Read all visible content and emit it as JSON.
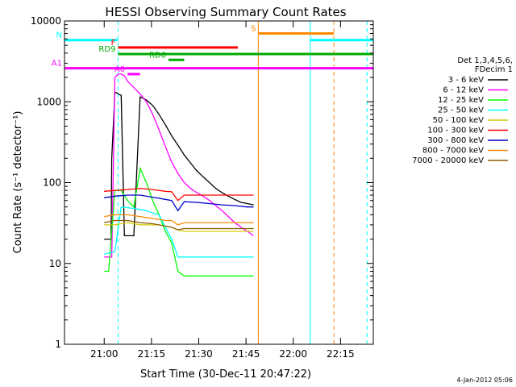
{
  "chart_data": {
    "type": "line",
    "title": "HESSI Observing Summary Count Rates",
    "xlabel": "Start Time (30-Dec-11 20:47:22)",
    "ylabel": "Count Rate (s⁻¹ detector⁻¹)",
    "y_scale": "log",
    "ylim": [
      1,
      10000
    ],
    "x_unit": "minutes after 30-Dec-11 20:47:22",
    "xlim": [
      0,
      98
    ],
    "x_ticks": [
      {
        "value": 12.6,
        "label": "21:00"
      },
      {
        "value": 27.6,
        "label": "21:15"
      },
      {
        "value": 42.6,
        "label": "21:30"
      },
      {
        "value": 57.6,
        "label": "21:45"
      },
      {
        "value": 72.6,
        "label": "22:00"
      },
      {
        "value": 87.6,
        "label": "22:15"
      }
    ],
    "y_ticks": [
      {
        "value": 1,
        "label": "1"
      },
      {
        "value": 10,
        "label": "10"
      },
      {
        "value": 100,
        "label": "100"
      },
      {
        "value": 1000,
        "label": "1000"
      },
      {
        "value": 10000,
        "label": "10000"
      }
    ],
    "legend": {
      "placement": "right",
      "header": [
        "Det 1,3,4,5,6,",
        "FDecim 1"
      ]
    },
    "series": [
      {
        "name": "3 - 6 keV",
        "color": "#000000",
        "x": [
          12.6,
          14,
          14.8,
          15,
          16,
          16.5,
          17,
          18,
          19,
          20,
          21,
          22,
          24,
          26,
          28,
          30,
          32,
          34,
          36,
          38,
          40,
          42,
          44,
          46,
          48,
          50,
          52,
          54,
          56,
          58,
          60
        ],
        "y": [
          20,
          20,
          20,
          200,
          1300,
          1300,
          1250,
          1200,
          22,
          22,
          22,
          22,
          1150,
          1050,
          900,
          700,
          520,
          380,
          290,
          220,
          175,
          140,
          118,
          100,
          85,
          75,
          68,
          62,
          57,
          55,
          53
        ]
      },
      {
        "name": "6 - 12 keV",
        "color": "#ff00ff",
        "x": [
          12.6,
          15,
          16,
          17,
          18,
          19,
          20,
          22,
          24,
          26,
          28,
          30,
          32,
          34,
          36,
          38,
          40,
          42,
          44,
          46,
          48,
          50,
          52,
          54,
          56,
          58,
          60
        ],
        "y": [
          12,
          12,
          2000,
          2200,
          2200,
          2100,
          1800,
          1500,
          1250,
          1000,
          700,
          450,
          280,
          180,
          130,
          100,
          85,
          75,
          68,
          60,
          52,
          45,
          38,
          32,
          28,
          25,
          22
        ]
      },
      {
        "name": "12 - 25 keV",
        "color": "#00ff00",
        "x": [
          12.6,
          14,
          16,
          18,
          20,
          22,
          24,
          26,
          28,
          30,
          32,
          34,
          36,
          38,
          40,
          42,
          44,
          46,
          48,
          50,
          52,
          54,
          56,
          58,
          60
        ],
        "y": [
          8,
          8,
          80,
          80,
          60,
          50,
          150,
          100,
          60,
          40,
          25,
          18,
          8,
          7,
          7,
          7,
          7,
          7,
          7,
          7,
          7,
          7,
          7,
          7,
          7
        ]
      },
      {
        "name": "25 - 50 keV",
        "color": "#00ffff",
        "x": [
          12.6,
          16,
          18,
          22,
          26,
          28,
          30,
          34,
          36,
          38,
          40,
          42,
          44,
          46,
          48,
          52,
          56,
          60
        ],
        "y": [
          13,
          14,
          50,
          48,
          45,
          42,
          40,
          20,
          12,
          12,
          12,
          12,
          12,
          12,
          12,
          12,
          12,
          12
        ]
      },
      {
        "name": "50 - 100 keV",
        "color": "#d4c800",
        "x": [
          12.6,
          16,
          20,
          24,
          28,
          30,
          34,
          36,
          38,
          40,
          44,
          48,
          52,
          56,
          60
        ],
        "y": [
          30,
          30,
          32,
          30,
          30,
          30,
          28,
          26,
          25,
          25,
          25,
          25,
          25,
          25,
          25
        ]
      },
      {
        "name": "100 - 300 keV",
        "color": "#ff0000",
        "x": [
          12.6,
          16,
          20,
          24,
          28,
          32,
          34,
          36,
          38,
          42,
          46,
          50,
          54,
          58,
          60
        ],
        "y": [
          78,
          80,
          82,
          85,
          82,
          78,
          77,
          60,
          70,
          70,
          70,
          70,
          70,
          70,
          70
        ]
      },
      {
        "name": "300 - 800 keV",
        "color": "#0000cc",
        "x": [
          12.6,
          16,
          20,
          24,
          28,
          32,
          34,
          36,
          38,
          42,
          46,
          50,
          54,
          58,
          60
        ],
        "y": [
          65,
          68,
          70,
          70,
          66,
          62,
          60,
          45,
          58,
          57,
          55,
          53,
          52,
          50,
          50
        ]
      },
      {
        "name": "800 - 7000 keV",
        "color": "#ff8800",
        "x": [
          12.6,
          16,
          20,
          24,
          28,
          32,
          34,
          36,
          38,
          42,
          46,
          50,
          54,
          58,
          60
        ],
        "y": [
          38,
          40,
          40,
          38,
          36,
          34,
          34,
          30,
          32,
          32,
          32,
          32,
          32,
          32,
          32
        ]
      },
      {
        "name": "7000 - 20000 keV",
        "color": "#8b5a00",
        "x": [
          12.6,
          16,
          20,
          24,
          28,
          32,
          34,
          36,
          38,
          42,
          46,
          50,
          54,
          58,
          60
        ],
        "y": [
          32,
          34,
          34,
          32,
          31,
          29,
          28,
          26,
          27,
          27,
          27,
          27,
          27,
          27,
          27
        ]
      }
    ],
    "flags": [
      {
        "label": "N",
        "color": "#00ffff",
        "segments": [
          [
            0,
            17
          ],
          [
            78,
            98
          ]
        ],
        "y": 5800
      },
      {
        "label": "F",
        "color": "#ff0000",
        "segments": [
          [
            17,
            55
          ]
        ],
        "y": 4700
      },
      {
        "label": "RD9",
        "color": "#00aa00",
        "segments": [
          [
            17,
            98
          ]
        ],
        "y": 3900
      },
      {
        "label": "RD6",
        "color": "#00aa00",
        "segments": [
          [
            33,
            38
          ]
        ],
        "y": 3300
      },
      {
        "label": "S",
        "color": "#ff8800",
        "segments": [
          [
            61.5,
            85.5
          ]
        ],
        "y": 7000
      },
      {
        "label": "A1",
        "color": "#ff00ff",
        "segments": [
          [
            0,
            98
          ]
        ],
        "y": 2600
      },
      {
        "label": "A0",
        "color": "#ff00ff",
        "segments": [
          [
            20,
            24
          ]
        ],
        "y": 2200
      }
    ],
    "vertical_markers": [
      {
        "x": 17,
        "color": "#00ffff",
        "style": "dashed"
      },
      {
        "x": 61.5,
        "color": "#ff8800",
        "style": "solid"
      },
      {
        "x": 78,
        "color": "#00ffff",
        "style": "solid"
      },
      {
        "x": 85.5,
        "color": "#ff8800",
        "style": "dashed"
      },
      {
        "x": 96,
        "color": "#00ffff",
        "style": "dashed"
      }
    ],
    "footer": "4-Jan-2012 05:06"
  }
}
